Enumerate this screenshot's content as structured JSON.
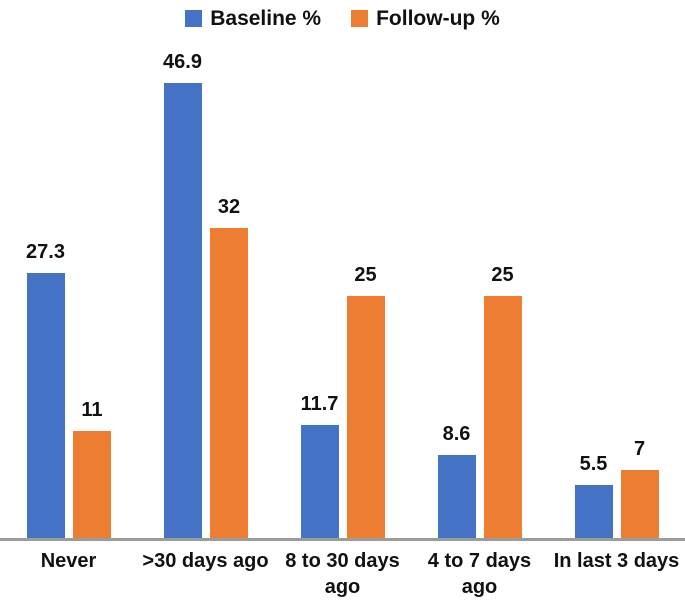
{
  "chart_data": {
    "type": "bar",
    "title": "",
    "categories": [
      "Never",
      ">30 days ago",
      "8 to 30 days ago",
      "4 to 7 days ago",
      "In last 3 days"
    ],
    "series": [
      {
        "name": "Baseline %",
        "color": "#4472C4",
        "values": [
          27.3,
          46.9,
          11.7,
          8.6,
          5.5
        ]
      },
      {
        "name": "Follow-up %",
        "color": "#ED7D31",
        "values": [
          11,
          32,
          25,
          25,
          7
        ]
      }
    ],
    "data_labels": [
      "27.3",
      "46.9",
      "11.7",
      "8.6",
      "5.5",
      "11",
      "32",
      "25",
      "25",
      "7"
    ],
    "ylim": [
      0,
      50
    ],
    "grid": false,
    "y_axis_visible": false,
    "legend_position": "top",
    "axis_line_color": "#9b9b9b",
    "background_color": "#ffffff",
    "label_text_color": "#111111"
  }
}
